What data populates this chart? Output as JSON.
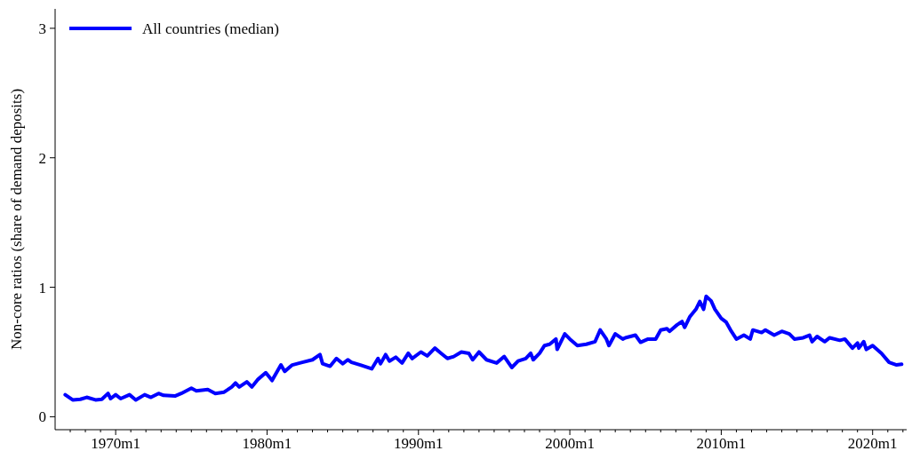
{
  "chart_data": {
    "type": "line",
    "ylabel": "Non-core ratios (share of demand deposits)",
    "xlim": [
      "1966-01",
      "2022-04"
    ],
    "ylim": [
      -0.1,
      3.15
    ],
    "yticks": [
      0,
      1,
      2,
      3
    ],
    "xticks": [
      {
        "value": "1967-01",
        "label": null
      },
      {
        "value": "1968-01",
        "label": null
      },
      {
        "value": "1969-01",
        "label": null
      },
      {
        "value": "1970-01",
        "label": "1970m1"
      },
      {
        "value": "1971-01",
        "label": null
      },
      {
        "value": "1972-01",
        "label": null
      },
      {
        "value": "1973-01",
        "label": null
      },
      {
        "value": "1974-01",
        "label": null
      },
      {
        "value": "1975-01",
        "label": null
      },
      {
        "value": "1976-01",
        "label": null
      },
      {
        "value": "1977-01",
        "label": null
      },
      {
        "value": "1978-01",
        "label": null
      },
      {
        "value": "1979-01",
        "label": null
      },
      {
        "value": "1980-01",
        "label": "1980m1"
      },
      {
        "value": "1981-01",
        "label": null
      },
      {
        "value": "1982-01",
        "label": null
      },
      {
        "value": "1983-01",
        "label": null
      },
      {
        "value": "1984-01",
        "label": null
      },
      {
        "value": "1985-01",
        "label": null
      },
      {
        "value": "1986-01",
        "label": null
      },
      {
        "value": "1987-01",
        "label": null
      },
      {
        "value": "1988-01",
        "label": null
      },
      {
        "value": "1989-01",
        "label": null
      },
      {
        "value": "1990-01",
        "label": "1990m1"
      },
      {
        "value": "1991-01",
        "label": null
      },
      {
        "value": "1992-01",
        "label": null
      },
      {
        "value": "1993-01",
        "label": null
      },
      {
        "value": "1994-01",
        "label": null
      },
      {
        "value": "1995-01",
        "label": null
      },
      {
        "value": "1996-01",
        "label": null
      },
      {
        "value": "1997-01",
        "label": null
      },
      {
        "value": "1998-01",
        "label": null
      },
      {
        "value": "1999-01",
        "label": null
      },
      {
        "value": "2000-01",
        "label": "2000m1"
      },
      {
        "value": "2001-01",
        "label": null
      },
      {
        "value": "2002-01",
        "label": null
      },
      {
        "value": "2003-01",
        "label": null
      },
      {
        "value": "2004-01",
        "label": null
      },
      {
        "value": "2005-01",
        "label": null
      },
      {
        "value": "2006-01",
        "label": null
      },
      {
        "value": "2007-01",
        "label": null
      },
      {
        "value": "2008-01",
        "label": null
      },
      {
        "value": "2009-01",
        "label": null
      },
      {
        "value": "2010-01",
        "label": "2010m1"
      },
      {
        "value": "2011-01",
        "label": null
      },
      {
        "value": "2012-01",
        "label": null
      },
      {
        "value": "2013-01",
        "label": null
      },
      {
        "value": "2014-01",
        "label": null
      },
      {
        "value": "2015-01",
        "label": null
      },
      {
        "value": "2016-01",
        "label": null
      },
      {
        "value": "2017-01",
        "label": null
      },
      {
        "value": "2018-01",
        "label": null
      },
      {
        "value": "2019-01",
        "label": null
      },
      {
        "value": "2020-01",
        "label": "2020m1"
      },
      {
        "value": "2021-01",
        "label": null
      },
      {
        "value": "2022-01",
        "label": null
      }
    ],
    "grid": false,
    "legend": "top left",
    "marker": "none",
    "line_style": "solid",
    "series": [
      {
        "name": "All countries (median)",
        "color": "#0000ff",
        "x": [
          "1966-09",
          "1967-03",
          "1967-09",
          "1968-02",
          "1968-09",
          "1969-02",
          "1969-07",
          "1969-09",
          "1970-01",
          "1970-05",
          "1970-12",
          "1971-05",
          "1971-12",
          "1972-05",
          "1972-11",
          "1973-03",
          "1973-12",
          "1974-05",
          "1975-01",
          "1975-05",
          "1976-02",
          "1976-08",
          "1977-03",
          "1977-09",
          "1977-12",
          "1978-03",
          "1978-09",
          "1979-01",
          "1979-06",
          "1979-12",
          "1980-05",
          "1980-12",
          "1981-03",
          "1981-09",
          "1982-05",
          "1983-01",
          "1983-07",
          "1983-09",
          "1984-03",
          "1984-08",
          "1985-01",
          "1985-05",
          "1985-08",
          "1986-03",
          "1986-12",
          "1987-05",
          "1987-07",
          "1987-11",
          "1988-02",
          "1988-07",
          "1988-12",
          "1989-05",
          "1989-08",
          "1990-03",
          "1990-08",
          "1991-02",
          "1991-07",
          "1991-12",
          "1992-05",
          "1992-11",
          "1993-05",
          "1993-08",
          "1994-01",
          "1994-07",
          "1995-03",
          "1995-09",
          "1996-03",
          "1996-08",
          "1997-02",
          "1997-06",
          "1997-08",
          "1998-01",
          "1998-05",
          "1998-09",
          "1999-02",
          "1999-03",
          "1999-09",
          "2000-01",
          "2000-07",
          "2001-02",
          "2001-09",
          "2002-01",
          "2002-06",
          "2002-08",
          "2003-01",
          "2003-07",
          "2003-09",
          "2004-05",
          "2004-09",
          "2005-03",
          "2005-09",
          "2006-01",
          "2006-06",
          "2006-08",
          "2007-02",
          "2007-06",
          "2007-08",
          "2007-12",
          "2008-05",
          "2008-08",
          "2008-11",
          "2009-01",
          "2009-05",
          "2009-08",
          "2010-01",
          "2010-05",
          "2010-09",
          "2011-01",
          "2011-07",
          "2011-12",
          "2012-02",
          "2012-09",
          "2012-12",
          "2013-07",
          "2014-01",
          "2014-07",
          "2014-11",
          "2015-06",
          "2015-11",
          "2016-01",
          "2016-05",
          "2016-11",
          "2017-03",
          "2017-11",
          "2018-03",
          "2018-09",
          "2019-01",
          "2019-02",
          "2019-06",
          "2019-08",
          "2020-01",
          "2020-08",
          "2021-02",
          "2021-08",
          "2021-12"
        ],
        "values": [
          0.17,
          0.13,
          0.135,
          0.15,
          0.13,
          0.135,
          0.18,
          0.14,
          0.17,
          0.14,
          0.17,
          0.13,
          0.17,
          0.15,
          0.18,
          0.165,
          0.16,
          0.18,
          0.22,
          0.2,
          0.21,
          0.18,
          0.19,
          0.23,
          0.26,
          0.23,
          0.27,
          0.23,
          0.29,
          0.34,
          0.28,
          0.4,
          0.35,
          0.4,
          0.42,
          0.44,
          0.48,
          0.41,
          0.39,
          0.45,
          0.41,
          0.44,
          0.42,
          0.4,
          0.37,
          0.45,
          0.41,
          0.48,
          0.43,
          0.46,
          0.415,
          0.49,
          0.45,
          0.5,
          0.47,
          0.53,
          0.49,
          0.45,
          0.465,
          0.5,
          0.49,
          0.44,
          0.5,
          0.44,
          0.415,
          0.465,
          0.38,
          0.43,
          0.45,
          0.49,
          0.44,
          0.49,
          0.55,
          0.56,
          0.6,
          0.52,
          0.64,
          0.6,
          0.55,
          0.56,
          0.58,
          0.67,
          0.6,
          0.55,
          0.64,
          0.6,
          0.61,
          0.63,
          0.575,
          0.6,
          0.6,
          0.67,
          0.68,
          0.66,
          0.71,
          0.735,
          0.69,
          0.77,
          0.83,
          0.89,
          0.83,
          0.93,
          0.895,
          0.83,
          0.76,
          0.73,
          0.66,
          0.6,
          0.63,
          0.6,
          0.67,
          0.65,
          0.67,
          0.63,
          0.66,
          0.64,
          0.6,
          0.61,
          0.63,
          0.58,
          0.62,
          0.58,
          0.61,
          0.59,
          0.6,
          0.53,
          0.57,
          0.53,
          0.58,
          0.52,
          0.55,
          0.49,
          0.42,
          0.4,
          0.405
        ]
      }
    ]
  }
}
